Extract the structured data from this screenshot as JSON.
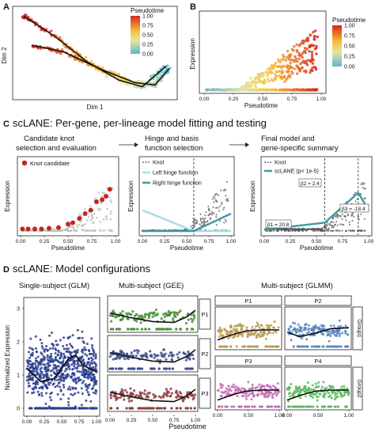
{
  "panel_letters": {
    "a": "A",
    "b": "B",
    "c": "C",
    "d": "D"
  },
  "legend_title": "Pseudotime",
  "legend_ticks": [
    "1.00",
    "0.75",
    "0.50",
    "0.25",
    "0.00"
  ],
  "section_c": {
    "title": "scLANE: Per-gene, per-lineage model fitting and testing",
    "step1": [
      "Candidate knot",
      "selection and evaluation"
    ],
    "step2": [
      "Hinge and basis",
      "function selection"
    ],
    "step3": [
      "Final model and",
      "gene-specific summary"
    ],
    "legend1": "Knot candidate",
    "legend2": [
      "Knot",
      "Left hinge function",
      "Right hinge function"
    ],
    "legend3": [
      "Knot",
      "scLANE (p< 1e-5)"
    ],
    "ann1": "β1 = 20.8",
    "ann2": "β2 = 2.4",
    "ann3": "β3 = -18.4"
  },
  "section_d": {
    "title": "scLANE: Model configurations",
    "sub1": "Single-subject (GLM)",
    "sub2": "Multi-subject (GEE)",
    "sub3": "Multi-subject (GLMM)",
    "strips_gee": [
      "P1",
      "P2",
      "P3"
    ],
    "strips_glmm": [
      "P1",
      "P2",
      "P3",
      "P4"
    ],
    "groups": [
      "Group1",
      "Group2"
    ]
  },
  "chart_data": [
    {
      "type": "scatter",
      "panel": "A",
      "xlabel": "Dim 1",
      "ylabel": "Dim 2",
      "color_scale": {
        "title": "Pseudotime",
        "range": [
          0,
          1
        ]
      },
      "trajectories": [
        {
          "x": [
            0.05,
            0.25,
            0.45,
            0.65,
            0.8,
            0.95
          ],
          "y": [
            0.95,
            0.7,
            0.4,
            0.18,
            0.1,
            0.35
          ]
        },
        {
          "x": [
            0.1,
            0.3,
            0.55,
            0.75,
            0.88,
            0.97
          ],
          "y": [
            0.6,
            0.52,
            0.3,
            0.15,
            0.12,
            0.32
          ]
        }
      ]
    },
    {
      "type": "scatter",
      "panel": "B",
      "xlabel": "Pseudotime",
      "ylabel": "Expression",
      "x_ticks": [
        "0.00",
        "0.25",
        "0.50",
        "0.75",
        "1.00"
      ],
      "xlim": [
        0,
        1
      ],
      "trend": "expression rises with pseudotime, peaks near 0.9"
    },
    {
      "type": "scatter",
      "panel": "C1",
      "xlabel": "Pseudotime",
      "ylabel": "Expression",
      "x_ticks": [
        "0.00",
        "0.25",
        "0.50",
        "0.75",
        "1.00"
      ],
      "knot_candidates_x": [
        0.02,
        0.08,
        0.15,
        0.22,
        0.3,
        0.4,
        0.5,
        0.55,
        0.62,
        0.68,
        0.74,
        0.8,
        0.86,
        0.9,
        0.94
      ],
      "knot_candidates_y": [
        0.03,
        0.03,
        0.03,
        0.03,
        0.04,
        0.05,
        0.1,
        0.12,
        0.18,
        0.25,
        0.3,
        0.42,
        0.45,
        0.5,
        0.6
      ]
    },
    {
      "type": "line",
      "panel": "C2",
      "xlabel": "Pseudotime",
      "ylabel": "Expression",
      "x_ticks": [
        "0.00",
        "0.25",
        "0.50",
        "0.75",
        "1.00"
      ],
      "knot": 0.58,
      "series": [
        {
          "name": "Left hinge function",
          "x": [
            0,
            0.58,
            1
          ],
          "y": [
            0.3,
            0,
            0
          ]
        },
        {
          "name": "Right hinge function",
          "x": [
            0,
            0.58,
            1
          ],
          "y": [
            0,
            0,
            0.25
          ]
        }
      ]
    },
    {
      "type": "line",
      "panel": "C3",
      "xlabel": "Pseudotime",
      "ylabel": "Expression",
      "x_ticks": [
        "0.00",
        "0.25",
        "0.50",
        "0.75",
        "1.00"
      ],
      "knots": [
        0.58,
        0.9
      ],
      "series": [
        {
          "name": "scLANE (p< 1e-5)",
          "x": [
            0,
            0.58,
            0.9,
            1
          ],
          "y": [
            0.02,
            0.12,
            0.55,
            0.3
          ]
        }
      ]
    },
    {
      "type": "scatter",
      "panel": "D1",
      "xlabel": "Pseudotime",
      "ylabel": "Normalized Expression",
      "x_ticks": [
        "0.00",
        "0.25",
        "0.50",
        "0.75",
        "1.00"
      ],
      "y_ticks": [
        "0",
        "1",
        "2",
        "3"
      ],
      "fit": {
        "x": [
          0,
          0.2,
          0.4,
          0.6,
          0.7,
          0.8,
          1
        ],
        "y": [
          1.2,
          0.8,
          0.9,
          1.5,
          1.6,
          1.3,
          1.1
        ]
      }
    }
  ]
}
